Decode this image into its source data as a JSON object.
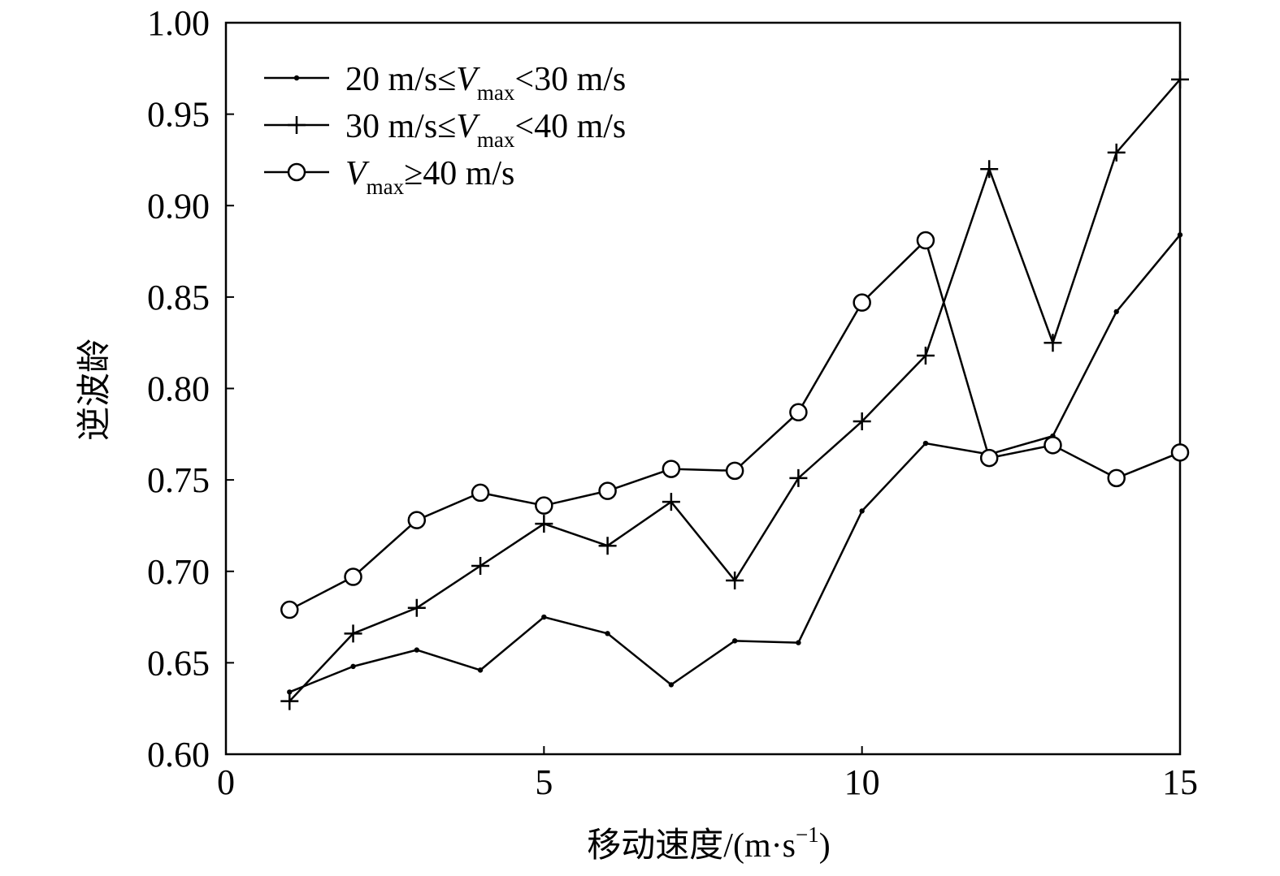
{
  "chart_data": {
    "type": "line",
    "xlabel_main": "移动速度/(m·s",
    "xlabel_sup": "−1",
    "xlabel_close": ")",
    "ylabel": "逆波龄",
    "xlim": [
      0,
      15
    ],
    "ylim": [
      0.6,
      1.0
    ],
    "x_ticks": [
      0,
      5,
      10,
      15
    ],
    "x_tick_labels": [
      "0",
      "5",
      "10",
      "15"
    ],
    "y_ticks": [
      0.6,
      0.65,
      0.7,
      0.75,
      0.8,
      0.85,
      0.9,
      0.95,
      1.0
    ],
    "y_tick_labels": [
      "0.60",
      "0.65",
      "0.70",
      "0.75",
      "0.80",
      "0.85",
      "0.90",
      "0.95",
      "1.00"
    ],
    "grid": false,
    "legend_position": "top-left",
    "x": [
      1,
      2,
      3,
      4,
      5,
      6,
      7,
      8,
      9,
      10,
      11,
      12,
      13,
      14,
      15
    ],
    "series": [
      {
        "marker": "dot",
        "legend": {
          "pre": "20 m/s≤",
          "v": "V",
          "sub": "max",
          "post": "<30 m/s"
        },
        "values": [
          0.634,
          0.648,
          0.657,
          0.646,
          0.675,
          0.666,
          0.638,
          0.662,
          0.661,
          0.733,
          0.77,
          0.764,
          0.774,
          0.842,
          0.884
        ]
      },
      {
        "marker": "plus",
        "legend": {
          "pre": "30 m/s≤",
          "v": "V",
          "sub": "max",
          "post": "<40 m/s"
        },
        "values": [
          0.629,
          0.666,
          0.68,
          0.703,
          0.726,
          0.714,
          0.738,
          0.695,
          0.751,
          0.782,
          0.818,
          0.92,
          0.825,
          0.929,
          0.969
        ]
      },
      {
        "marker": "circle",
        "legend": {
          "pre": "",
          "v": "V",
          "sub": "max",
          "post": "≥40 m/s"
        },
        "values": [
          0.679,
          0.697,
          0.728,
          0.743,
          0.736,
          0.744,
          0.756,
          0.755,
          0.787,
          0.847,
          0.881,
          0.762,
          0.769,
          0.751,
          0.765
        ]
      }
    ]
  }
}
